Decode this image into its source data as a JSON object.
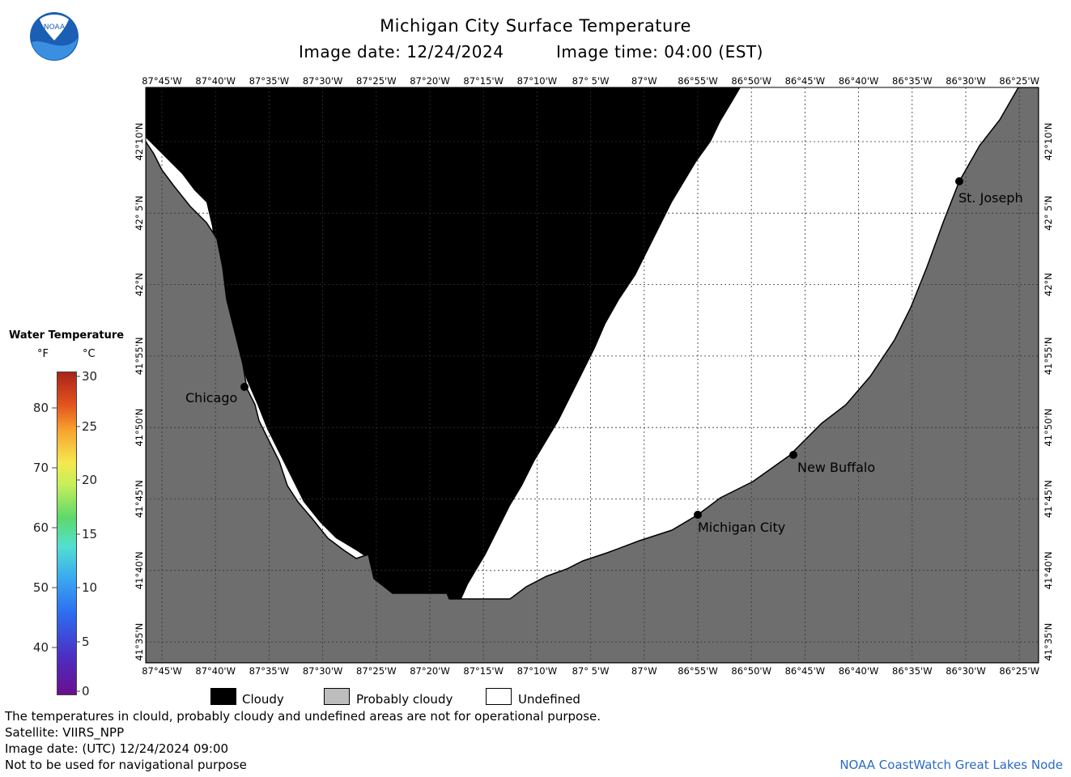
{
  "header": {
    "title": "Michigan City Surface Temperature",
    "image_date": "Image date: 12/24/2024",
    "image_time": "Image time: 04:00 (EST)"
  },
  "logo": {
    "text": "NOAA",
    "icon": "noaa-logo"
  },
  "axes": {
    "lon_labels": [
      "87°45'W",
      "87°40'W",
      "87°35'W",
      "87°30'W",
      "87°25'W",
      "87°20'W",
      "87°15'W",
      "87°10'W",
      "87° 5'W",
      "87°W",
      "86°55'W",
      "86°50'W",
      "86°45'W",
      "86°40'W",
      "86°35'W",
      "86°30'W",
      "86°25'W"
    ],
    "lat_labels": [
      "42°10'N",
      "42° 5'N",
      "42°N",
      "41°55'N",
      "41°50'N",
      "41°45'N",
      "41°40'N",
      "41°35'N"
    ]
  },
  "cities": [
    {
      "name": "Chicago"
    },
    {
      "name": "St. Joseph"
    },
    {
      "name": "New Buffalo"
    },
    {
      "name": "Michigan City"
    }
  ],
  "colorbar": {
    "title": "Water Temperature",
    "unit_f": "°F",
    "unit_c": "°C",
    "f_labels": [
      "80",
      "70",
      "60",
      "50",
      "40"
    ],
    "c_labels": [
      "30",
      "25",
      "20",
      "15",
      "10",
      "5",
      "0"
    ]
  },
  "legend": {
    "cloudy": "Cloudy",
    "probably_cloudy": "Probably cloudy",
    "undefined": "Undefined"
  },
  "colors": {
    "land": "#6e6e6e",
    "cloud": "#000000",
    "undefined": "#ffffff",
    "credit": "#2b6cc4"
  },
  "footer": {
    "disclaimer": "The temperatures in clould, probably cloudy and undefined areas are not for operational purpose.",
    "satellite": "Satellite: VIIRS_NPP",
    "utc_date": "Image date: (UTC) 12/24/2024  09:00",
    "nav_note": "Not to be used for navigational purpose",
    "credit": "NOAA CoastWatch Great Lakes Node"
  }
}
